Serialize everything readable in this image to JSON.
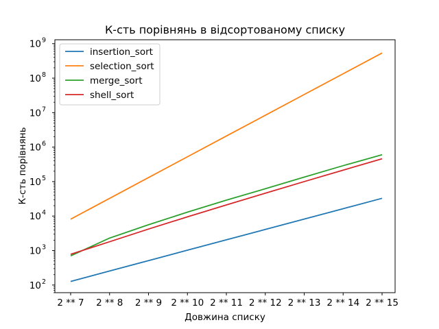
{
  "chart_data": {
    "type": "line",
    "title": "К-сть порівнянь в відсортованому списку",
    "xlabel": "Довжина списку",
    "ylabel": "К-сть порівнянь",
    "yscale": "log",
    "ylim": [
      60,
      1300000000
    ],
    "categories": [
      "2 ** 7",
      "2 ** 8",
      "2 ** 9",
      "2 ** 10",
      "2 ** 11",
      "2 ** 12",
      "2 ** 13",
      "2 ** 14",
      "2 ** 15"
    ],
    "y_tick_labels": [
      {
        "base": "10",
        "exp": "2",
        "value": 100
      },
      {
        "base": "10",
        "exp": "3",
        "value": 1000
      },
      {
        "base": "10",
        "exp": "4",
        "value": 10000
      },
      {
        "base": "10",
        "exp": "5",
        "value": 100000
      },
      {
        "base": "10",
        "exp": "6",
        "value": 1000000
      },
      {
        "base": "10",
        "exp": "7",
        "value": 10000000
      },
      {
        "base": "10",
        "exp": "8",
        "value": 100000000
      },
      {
        "base": "10",
        "exp": "9",
        "value": 1000000000
      }
    ],
    "legend_position": "upper-left",
    "grid": false,
    "series": [
      {
        "name": "insertion_sort",
        "color": "#1f77b4",
        "values": [
          127,
          255,
          511,
          1023,
          2047,
          4095,
          8191,
          16383,
          32767
        ]
      },
      {
        "name": "selection_sort",
        "color": "#ff7f0e",
        "values": [
          8128,
          32640,
          130816,
          523776,
          2096128,
          8386560,
          33550336,
          134209536,
          536854528
        ]
      },
      {
        "name": "merge_sort",
        "color": "#2ca02c",
        "values": [
          700,
          2300,
          5600,
          13000,
          29000,
          62000,
          135000,
          290000,
          600000
        ]
      },
      {
        "name": "shell_sort",
        "color": "#d62728",
        "values": [
          780,
          1800,
          4200,
          9500,
          21000,
          46000,
          100000,
          215000,
          460000
        ]
      }
    ]
  }
}
